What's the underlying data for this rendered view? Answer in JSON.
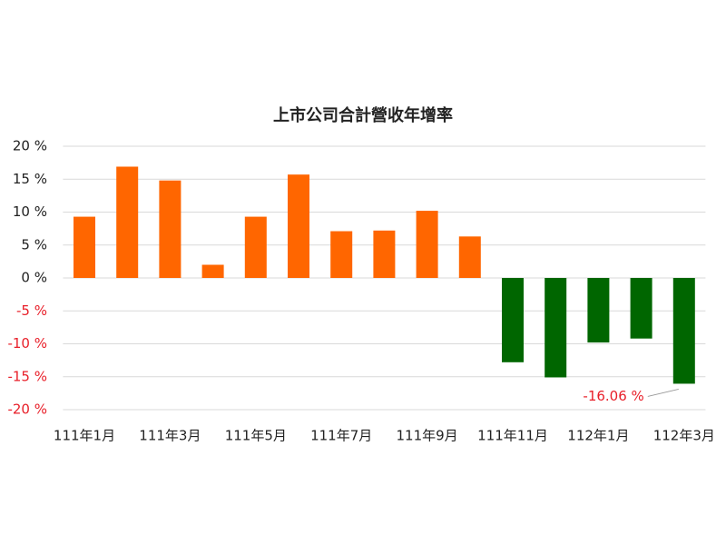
{
  "chart_data": {
    "type": "bar",
    "title": "上市公司合計營收年增率",
    "categories": [
      "111年1月",
      null,
      "111年3月",
      null,
      "111年5月",
      null,
      "111年7月",
      null,
      "111年9月",
      null,
      "111年11月",
      null,
      "112年1月",
      null,
      "112年3月"
    ],
    "values": [
      9.3,
      16.9,
      14.8,
      2.0,
      9.3,
      15.7,
      7.1,
      7.2,
      10.2,
      6.3,
      -12.8,
      -15.1,
      -9.8,
      -9.2,
      -16.06
    ],
    "value_labels": [
      null,
      null,
      null,
      null,
      null,
      null,
      null,
      null,
      null,
      null,
      null,
      null,
      null,
      null,
      "-16.06 %"
    ],
    "positive_color": "#ff6600",
    "negative_color": "#006600",
    "negative_tick_color": "#e8202a",
    "ylim": [
      -20,
      20
    ],
    "yticks": [
      {
        "value": -20,
        "label": "-20 %"
      },
      {
        "value": -15,
        "label": "-15 %"
      },
      {
        "value": -10,
        "label": "-10 %"
      },
      {
        "value": -5,
        "label": "-5 %"
      },
      {
        "value": 0,
        "label": "0 %"
      },
      {
        "value": 5,
        "label": "5 %"
      },
      {
        "value": 10,
        "label": "10 %"
      },
      {
        "value": 15,
        "label": "15 %"
      },
      {
        "value": 20,
        "label": "20 %"
      }
    ],
    "grid": true
  }
}
